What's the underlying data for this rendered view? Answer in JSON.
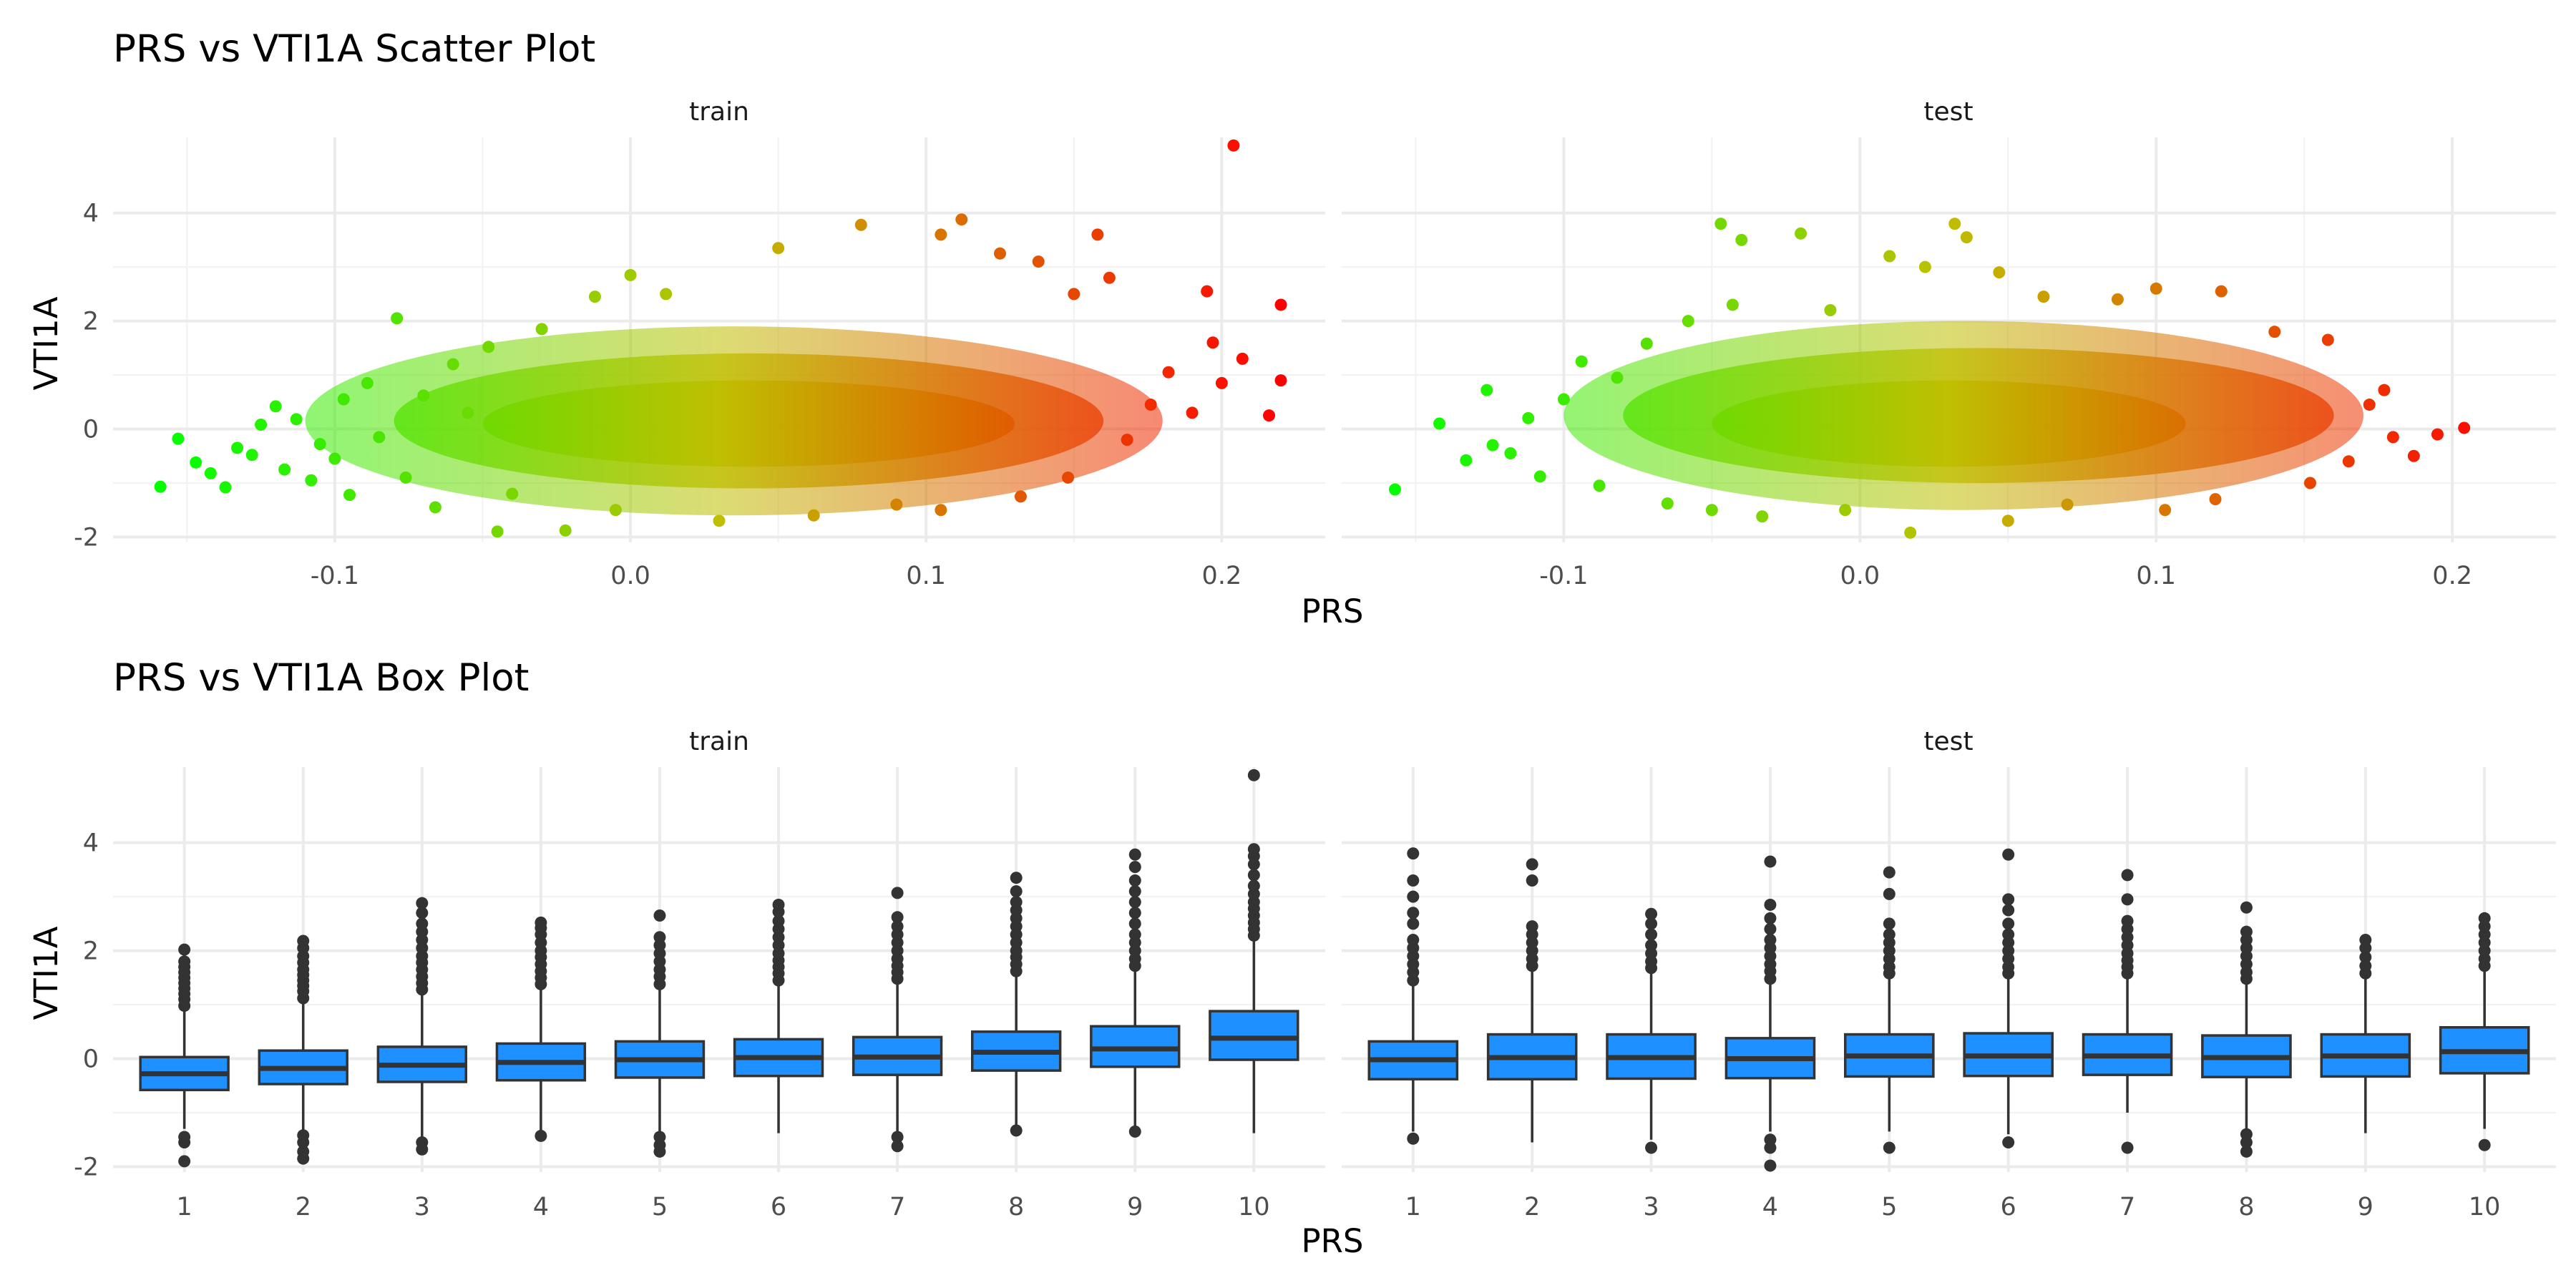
{
  "chart_data": [
    {
      "type": "scatter",
      "title": "PRS vs VTI1A Scatter Plot",
      "xlabel": "PRS",
      "ylabel": "VTI1A",
      "panels": [
        "train",
        "test"
      ],
      "xlim": [
        -0.175,
        0.235
      ],
      "ylim": [
        -2.1,
        5.4
      ],
      "xticks": [
        -0.1,
        0.0,
        0.1,
        0.2
      ],
      "xtick_labels": [
        "-0.1",
        "0.0",
        "0.1",
        "0.2"
      ],
      "yticks": [
        -2,
        0,
        2,
        4
      ],
      "ytick_labels": [
        "-2",
        "0",
        "2",
        "4"
      ],
      "grid": true,
      "color_scale": {
        "low": "#00ff00",
        "mid": "#bfbf00",
        "high": "#ff0000",
        "by": "x"
      },
      "note": "Dense cloud of ~thousands of points per panel; listed points are representative samples and visible outliers",
      "series": [
        {
          "name": "train",
          "points": [
            [
              -0.159,
              -1.07
            ],
            [
              -0.153,
              -0.18
            ],
            [
              -0.147,
              -0.62
            ],
            [
              -0.142,
              -0.82
            ],
            [
              -0.137,
              -1.08
            ],
            [
              -0.133,
              -0.35
            ],
            [
              -0.128,
              -0.48
            ],
            [
              -0.125,
              0.08
            ],
            [
              -0.12,
              0.42
            ],
            [
              -0.117,
              -0.75
            ],
            [
              -0.113,
              0.18
            ],
            [
              -0.108,
              -0.95
            ],
            [
              -0.105,
              -0.28
            ],
            [
              -0.1,
              -0.55
            ],
            [
              -0.097,
              0.55
            ],
            [
              -0.095,
              -1.22
            ],
            [
              -0.089,
              0.85
            ],
            [
              -0.085,
              -0.15
            ],
            [
              -0.079,
              2.05
            ],
            [
              -0.076,
              -0.9
            ],
            [
              -0.07,
              0.62
            ],
            [
              -0.066,
              -1.45
            ],
            [
              -0.06,
              1.2
            ],
            [
              -0.055,
              0.3
            ],
            [
              -0.048,
              1.52
            ],
            [
              -0.045,
              -1.9
            ],
            [
              -0.04,
              -1.2
            ],
            [
              -0.03,
              1.85
            ],
            [
              -0.022,
              -1.88
            ],
            [
              -0.012,
              2.45
            ],
            [
              -0.005,
              -1.5
            ],
            [
              0.0,
              2.85
            ],
            [
              0.012,
              2.5
            ],
            [
              0.03,
              -1.7
            ],
            [
              0.05,
              3.35
            ],
            [
              0.062,
              -1.6
            ],
            [
              0.078,
              3.78
            ],
            [
              0.09,
              -1.4
            ],
            [
              0.105,
              3.6
            ],
            [
              0.105,
              -1.5
            ],
            [
              0.112,
              3.88
            ],
            [
              0.125,
              3.25
            ],
            [
              0.132,
              -1.25
            ],
            [
              0.138,
              3.1
            ],
            [
              0.148,
              -0.9
            ],
            [
              0.15,
              2.5
            ],
            [
              0.158,
              3.6
            ],
            [
              0.162,
              2.8
            ],
            [
              0.168,
              -0.2
            ],
            [
              0.176,
              0.45
            ],
            [
              0.182,
              1.05
            ],
            [
              0.19,
              0.3
            ],
            [
              0.195,
              2.55
            ],
            [
              0.197,
              1.6
            ],
            [
              0.2,
              0.85
            ],
            [
              0.204,
              5.25
            ],
            [
              0.207,
              1.3
            ],
            [
              0.216,
              0.25
            ],
            [
              0.22,
              2.3
            ],
            [
              0.22,
              0.9
            ]
          ]
        },
        {
          "name": "test",
          "points": [
            [
              -0.157,
              -1.12
            ],
            [
              -0.142,
              0.1
            ],
            [
              -0.133,
              -0.58
            ],
            [
              -0.126,
              0.72
            ],
            [
              -0.124,
              -0.3
            ],
            [
              -0.118,
              -0.45
            ],
            [
              -0.112,
              0.2
            ],
            [
              -0.108,
              -0.88
            ],
            [
              -0.1,
              0.55
            ],
            [
              -0.094,
              1.25
            ],
            [
              -0.088,
              -1.05
            ],
            [
              -0.082,
              0.95
            ],
            [
              -0.072,
              1.58
            ],
            [
              -0.065,
              -1.38
            ],
            [
              -0.058,
              2.0
            ],
            [
              -0.05,
              -1.5
            ],
            [
              -0.047,
              3.8
            ],
            [
              -0.043,
              2.3
            ],
            [
              -0.04,
              3.5
            ],
            [
              -0.033,
              -1.62
            ],
            [
              -0.02,
              3.62
            ],
            [
              -0.01,
              2.2
            ],
            [
              -0.005,
              -1.5
            ],
            [
              0.01,
              3.2
            ],
            [
              0.017,
              -1.92
            ],
            [
              0.022,
              3.0
            ],
            [
              0.032,
              3.8
            ],
            [
              0.036,
              3.55
            ],
            [
              0.047,
              2.9
            ],
            [
              0.05,
              -1.7
            ],
            [
              0.062,
              2.45
            ],
            [
              0.07,
              -1.4
            ],
            [
              0.087,
              2.4
            ],
            [
              0.1,
              2.6
            ],
            [
              0.103,
              -1.5
            ],
            [
              0.122,
              2.55
            ],
            [
              0.12,
              -1.3
            ],
            [
              0.14,
              1.8
            ],
            [
              0.152,
              -1.0
            ],
            [
              0.158,
              1.65
            ],
            [
              0.165,
              -0.6
            ],
            [
              0.172,
              0.45
            ],
            [
              0.177,
              0.72
            ],
            [
              0.18,
              -0.15
            ],
            [
              0.187,
              -0.5
            ],
            [
              0.195,
              -0.1
            ],
            [
              0.204,
              0.02
            ]
          ]
        }
      ]
    },
    {
      "type": "box",
      "title": "PRS vs VTI1A Box Plot",
      "xlabel": "PRS",
      "ylabel": "VTI1A",
      "panels": [
        "train",
        "test"
      ],
      "categories": [
        "1",
        "2",
        "3",
        "4",
        "5",
        "6",
        "7",
        "8",
        "9",
        "10"
      ],
      "ylim": [
        -2.1,
        5.4
      ],
      "yticks": [
        -2,
        0,
        2,
        4
      ],
      "ytick_labels": [
        "-2",
        "0",
        "2",
        "4"
      ],
      "grid": true,
      "box_fill": "#1e90ff",
      "series": [
        {
          "name": "train",
          "boxes": [
            {
              "q1": -0.58,
              "median": -0.28,
              "q3": 0.03,
              "low": -1.3,
              "high": 0.9,
              "outliers": [
                -1.45,
                -1.55,
                -1.9,
                0.98,
                1.1,
                1.2,
                1.3,
                1.4,
                1.5,
                1.6,
                1.7,
                1.8,
                2.02
              ]
            },
            {
              "q1": -0.47,
              "median": -0.18,
              "q3": 0.15,
              "low": -1.32,
              "high": 1.05,
              "outliers": [
                -1.42,
                -1.55,
                -1.72,
                -1.85,
                1.12,
                1.25,
                1.35,
                1.45,
                1.55,
                1.65,
                1.78,
                1.9,
                2.05,
                2.18
              ]
            },
            {
              "q1": -0.43,
              "median": -0.12,
              "q3": 0.22,
              "low": -1.45,
              "high": 1.2,
              "outliers": [
                -1.55,
                -1.68,
                1.28,
                1.4,
                1.52,
                1.65,
                1.78,
                1.9,
                2.05,
                2.2,
                2.35,
                2.5,
                2.7,
                2.88
              ]
            },
            {
              "q1": -0.4,
              "median": -0.07,
              "q3": 0.28,
              "low": -1.38,
              "high": 1.3,
              "outliers": [
                -1.43,
                1.38,
                1.5,
                1.62,
                1.75,
                1.88,
                2.0,
                2.15,
                2.3,
                2.42,
                2.52
              ]
            },
            {
              "q1": -0.35,
              "median": -0.02,
              "q3": 0.32,
              "low": -1.35,
              "high": 1.3,
              "outliers": [
                -1.45,
                -1.6,
                -1.72,
                1.38,
                1.52,
                1.65,
                1.8,
                1.95,
                2.1,
                2.25,
                2.65
              ]
            },
            {
              "q1": -0.32,
              "median": 0.02,
              "q3": 0.36,
              "low": -1.38,
              "high": 1.38,
              "outliers": [
                1.45,
                1.58,
                1.7,
                1.82,
                1.95,
                2.1,
                2.25,
                2.4,
                2.55,
                2.72,
                2.85
              ]
            },
            {
              "q1": -0.3,
              "median": 0.03,
              "q3": 0.4,
              "low": -1.35,
              "high": 1.4,
              "outliers": [
                -1.45,
                -1.62,
                1.48,
                1.6,
                1.72,
                1.85,
                2.0,
                2.15,
                2.3,
                2.45,
                2.62,
                3.07
              ]
            },
            {
              "q1": -0.22,
              "median": 0.12,
              "q3": 0.5,
              "low": -1.28,
              "high": 1.55,
              "outliers": [
                -1.33,
                1.62,
                1.75,
                1.88,
                2.0,
                2.15,
                2.3,
                2.45,
                2.6,
                2.75,
                2.9,
                3.1,
                3.35
              ]
            },
            {
              "q1": -0.15,
              "median": 0.18,
              "q3": 0.6,
              "low": -1.25,
              "high": 1.65,
              "outliers": [
                -1.35,
                1.72,
                1.85,
                2.0,
                2.15,
                2.3,
                2.5,
                2.7,
                2.9,
                3.1,
                3.3,
                3.55,
                3.78
              ]
            },
            {
              "q1": -0.02,
              "median": 0.38,
              "q3": 0.88,
              "low": -1.38,
              "high": 2.2,
              "outliers": [
                2.28,
                2.4,
                2.52,
                2.65,
                2.78,
                2.9,
                3.05,
                3.2,
                3.4,
                3.6,
                3.75,
                3.88,
                5.25
              ]
            }
          ]
        },
        {
          "name": "test",
          "boxes": [
            {
              "q1": -0.38,
              "median": -0.02,
              "q3": 0.32,
              "low": -1.35,
              "high": 1.35,
              "outliers": [
                -1.48,
                1.45,
                1.6,
                1.75,
                1.9,
                2.05,
                2.2,
                2.5,
                2.7,
                3.0,
                3.3,
                3.8
              ]
            },
            {
              "q1": -0.38,
              "median": 0.02,
              "q3": 0.45,
              "low": -1.55,
              "high": 1.65,
              "outliers": [
                1.72,
                1.85,
                2.0,
                2.15,
                2.3,
                2.45,
                3.3,
                3.6
              ]
            },
            {
              "q1": -0.37,
              "median": 0.02,
              "q3": 0.45,
              "low": -1.5,
              "high": 1.6,
              "outliers": [
                -1.65,
                1.68,
                1.8,
                1.95,
                2.1,
                2.3,
                2.5,
                2.68
              ]
            },
            {
              "q1": -0.36,
              "median": 0.0,
              "q3": 0.38,
              "low": -1.35,
              "high": 1.4,
              "outliers": [
                -1.5,
                -1.65,
                -1.98,
                1.48,
                1.62,
                1.75,
                1.9,
                2.05,
                2.2,
                2.4,
                2.6,
                2.85,
                3.65
              ]
            },
            {
              "q1": -0.33,
              "median": 0.05,
              "q3": 0.45,
              "low": -1.35,
              "high": 1.5,
              "outliers": [
                -1.65,
                1.58,
                1.7,
                1.85,
                2.0,
                2.15,
                2.3,
                2.5,
                3.05,
                3.45
              ]
            },
            {
              "q1": -0.32,
              "median": 0.05,
              "q3": 0.47,
              "low": -1.4,
              "high": 1.5,
              "outliers": [
                -1.55,
                1.58,
                1.7,
                1.85,
                2.0,
                2.15,
                2.3,
                2.5,
                2.75,
                2.95,
                3.78
              ]
            },
            {
              "q1": -0.3,
              "median": 0.05,
              "q3": 0.45,
              "low": -1.0,
              "high": 1.5,
              "outliers": [
                -1.65,
                1.58,
                1.7,
                1.82,
                1.95,
                2.1,
                2.25,
                2.4,
                2.55,
                2.95,
                3.4
              ]
            },
            {
              "q1": -0.34,
              "median": 0.02,
              "q3": 0.43,
              "low": -1.3,
              "high": 1.4,
              "outliers": [
                -1.4,
                -1.55,
                -1.72,
                1.48,
                1.6,
                1.75,
                1.9,
                2.05,
                2.2,
                2.35,
                2.8
              ]
            },
            {
              "q1": -0.33,
              "median": 0.05,
              "q3": 0.45,
              "low": -1.38,
              "high": 1.5,
              "outliers": [
                1.58,
                1.72,
                1.88,
                2.05,
                2.2
              ]
            },
            {
              "q1": -0.27,
              "median": 0.13,
              "q3": 0.58,
              "low": -1.3,
              "high": 1.65,
              "outliers": [
                -1.6,
                1.72,
                1.85,
                2.0,
                2.15,
                2.3,
                2.45,
                2.6
              ]
            }
          ]
        }
      ]
    }
  ]
}
